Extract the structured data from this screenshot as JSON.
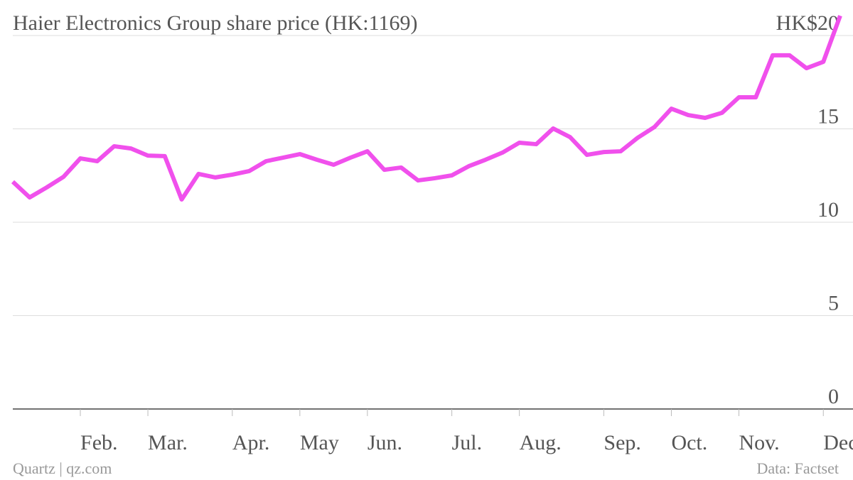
{
  "chart_data": {
    "type": "line",
    "title": "Haier Electronics Group share price (HK:1169)",
    "source": "Data: Factset",
    "credit": "Quartz | qz.com",
    "categories": [
      null,
      null,
      null,
      null,
      "Feb.",
      null,
      null,
      null,
      "Mar.",
      null,
      null,
      null,
      null,
      "Apr.",
      null,
      null,
      null,
      "May",
      null,
      null,
      null,
      "Jun.",
      null,
      null,
      null,
      null,
      "Jul.",
      null,
      null,
      null,
      "Aug.",
      null,
      null,
      null,
      null,
      "Sep.",
      null,
      null,
      null,
      "Oct.",
      null,
      null,
      null,
      "Nov.",
      null,
      null,
      null,
      null,
      "Dec.",
      null
    ],
    "series": [
      {
        "name": "HK:1169",
        "color": "#f050ec",
        "values": [
          12.17,
          11.33,
          11.86,
          12.43,
          13.42,
          13.27,
          14.07,
          13.95,
          13.57,
          13.54,
          11.22,
          12.59,
          12.4,
          12.55,
          12.74,
          13.27,
          13.46,
          13.65,
          13.35,
          13.08,
          13.46,
          13.8,
          12.81,
          12.93,
          12.24,
          12.36,
          12.51,
          13.0,
          13.35,
          13.73,
          14.26,
          14.18,
          15.02,
          14.56,
          13.61,
          13.76,
          13.8,
          14.52,
          15.1,
          16.08,
          15.74,
          15.59,
          15.86,
          16.69,
          16.69,
          18.94,
          18.94,
          18.25,
          18.59,
          21.06
        ]
      }
    ],
    "ylim": [
      0,
      20
    ],
    "yticks": [
      0,
      5,
      10,
      15,
      {
        "value": 20,
        "label": "HK$20"
      }
    ],
    "grid": true
  }
}
